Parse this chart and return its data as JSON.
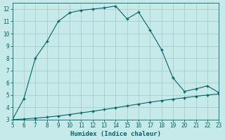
{
  "xlabel": "Humidex (Indice chaleur)",
  "ylabel": "",
  "bg_color": "#c6eaea",
  "grid_color": "#b0cccc",
  "line_color": "#006666",
  "marker_color": "#006666",
  "xlim": [
    5,
    23
  ],
  "ylim": [
    3,
    12.5
  ],
  "xticks": [
    5,
    6,
    7,
    8,
    9,
    10,
    11,
    12,
    13,
    14,
    15,
    16,
    17,
    18,
    19,
    20,
    21,
    22,
    23
  ],
  "yticks": [
    3,
    4,
    5,
    6,
    7,
    8,
    9,
    10,
    11,
    12
  ],
  "line1_x": [
    5,
    6,
    7,
    8,
    9,
    10,
    11,
    12,
    13,
    14,
    15,
    16,
    17,
    18,
    19,
    20,
    21,
    22,
    23
  ],
  "line1_y": [
    3.0,
    4.7,
    8.0,
    9.35,
    11.0,
    11.7,
    11.9,
    12.0,
    12.1,
    12.25,
    11.2,
    11.75,
    10.3,
    8.7,
    6.4,
    5.3,
    5.5,
    5.75,
    5.2
  ],
  "line2_x": [
    5,
    6,
    7,
    8,
    9,
    10,
    11,
    12,
    13,
    14,
    15,
    16,
    17,
    18,
    19,
    20,
    21,
    22,
    23
  ],
  "line2_y": [
    3.0,
    3.05,
    3.12,
    3.2,
    3.3,
    3.42,
    3.55,
    3.68,
    3.82,
    3.97,
    4.12,
    4.27,
    4.42,
    4.55,
    4.67,
    4.78,
    4.9,
    5.0,
    5.1
  ]
}
